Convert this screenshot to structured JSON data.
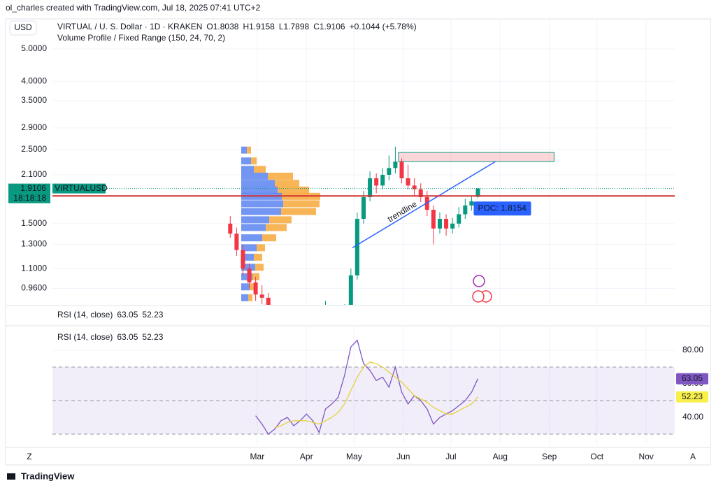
{
  "header": {
    "attribution": "ol_charles created with TradingView.com, Jul 18, 2025 07:41 UTC+2"
  },
  "footer": {
    "brand": "TradingView",
    "left_button": "Z",
    "right_button": "A"
  },
  "chart_data": [
    {
      "type": "candlestick",
      "currency": "USD",
      "symbol": "VIRTUAL / U. S. Dollar · 1D · KRAKEN",
      "ohlc_labels": [
        "O",
        "H",
        "L",
        "C"
      ],
      "change": "+0.1044 (+5.78%)",
      "indicator": "Volume Profile / Fixed Range (150, 24, 70, 2)",
      "up_color": "#089981",
      "down_color": "#f23645",
      "log_scale": true,
      "grid": true,
      "x": [
        -17,
        -13,
        -9,
        -5,
        -1,
        3,
        7,
        11,
        15,
        19,
        23,
        27,
        31,
        35,
        39,
        43,
        47,
        51,
        55,
        59,
        63,
        67,
        71,
        75,
        79,
        83,
        87,
        91,
        95,
        99,
        103,
        107,
        111,
        115,
        119,
        123,
        127,
        131,
        135,
        139
      ],
      "open": [
        1.5,
        1.4,
        1.25,
        1.1,
        1.0,
        0.92,
        0.9,
        0.82,
        0.75,
        0.7,
        0.68,
        0.72,
        0.66,
        0.62,
        0.65,
        0.7,
        0.78,
        0.8,
        0.76,
        0.82,
        1.05,
        1.55,
        1.8,
        2.05,
        1.95,
        2.1,
        2.2,
        2.3,
        2.05,
        1.95,
        1.9,
        1.8,
        1.65,
        1.45,
        1.55,
        1.45,
        1.5,
        1.6,
        1.7,
        1.8038
      ],
      "high": [
        1.58,
        1.46,
        1.3,
        1.14,
        1.04,
        0.98,
        0.93,
        0.85,
        0.78,
        0.73,
        0.75,
        0.74,
        0.68,
        0.68,
        0.73,
        0.88,
        0.83,
        0.82,
        0.86,
        1.1,
        1.62,
        1.88,
        2.15,
        2.12,
        2.2,
        2.4,
        2.55,
        2.35,
        2.25,
        2.05,
        1.98,
        1.88,
        1.7,
        1.62,
        1.6,
        1.56,
        1.68,
        1.78,
        1.82,
        1.9158
      ],
      "low": [
        1.36,
        1.2,
        1.05,
        0.96,
        0.88,
        0.86,
        0.79,
        0.72,
        0.67,
        0.65,
        0.66,
        0.63,
        0.59,
        0.6,
        0.63,
        0.68,
        0.75,
        0.73,
        0.74,
        0.8,
        1.02,
        1.5,
        1.75,
        1.85,
        1.9,
        2.02,
        2.12,
        1.98,
        1.9,
        1.82,
        1.74,
        1.58,
        1.3,
        1.4,
        1.38,
        1.4,
        1.46,
        1.55,
        1.64,
        1.7898
      ],
      "close": [
        1.4,
        1.25,
        1.1,
        1.0,
        0.92,
        0.9,
        0.82,
        0.75,
        0.7,
        0.68,
        0.72,
        0.66,
        0.62,
        0.65,
        0.7,
        0.78,
        0.8,
        0.76,
        0.82,
        1.05,
        1.55,
        1.8,
        2.05,
        1.95,
        2.1,
        2.2,
        2.3,
        2.05,
        1.95,
        1.9,
        1.8,
        1.65,
        1.45,
        1.55,
        1.45,
        1.5,
        1.6,
        1.7,
        1.75,
        1.9106
      ],
      "xlim": [
        -129,
        263
      ],
      "xticks": [
        {
          "value": 0,
          "label": "Mar"
        },
        {
          "value": 31,
          "label": "Apr"
        },
        {
          "value": 61,
          "label": "May"
        },
        {
          "value": 92,
          "label": "Jun"
        },
        {
          "value": 122,
          "label": "Jul"
        },
        {
          "value": 153,
          "label": "Aug"
        },
        {
          "value": 184,
          "label": "Sep"
        },
        {
          "value": 214,
          "label": "Oct"
        },
        {
          "value": 245,
          "label": "Nov"
        }
      ],
      "ylim": [
        0.857,
        6.15
      ],
      "yticks": [
        {
          "value": 0.96,
          "label": "0.9600"
        },
        {
          "value": 1.1,
          "label": "1.1000"
        },
        {
          "value": 1.3,
          "label": "1.3000"
        },
        {
          "value": 1.5,
          "label": "1.5000"
        },
        {
          "value": 2.1,
          "label": "2.1000"
        },
        {
          "value": 2.5,
          "label": "2.5000"
        },
        {
          "value": 2.9,
          "label": "2.9000"
        },
        {
          "value": 3.5,
          "label": "3.5000"
        },
        {
          "value": 4,
          "label": "4.0000"
        },
        {
          "value": 5,
          "label": "5.0000"
        }
      ],
      "price_tag": {
        "symbol": "VIRTUALUSD",
        "countdown": "18:18:18",
        "color": "#089981"
      },
      "poc": {
        "value": 1.8154,
        "label": "POC: 1.8154",
        "color": "#d32f2f",
        "tag_color": "#2962ff"
      },
      "trendline": {
        "label": "trendline",
        "x": [
          60,
          150
        ],
        "y": [
          1.27,
          2.3
        ],
        "color": "#2962ff"
      },
      "zone": {
        "x": [
          89,
          187
        ],
        "y": [
          2.3,
          2.45
        ]
      },
      "volume_profile": {
        "up_color": "#5b84f0",
        "down_color": "#f7a83a",
        "price": [
          2.49,
          2.31,
          2.18,
          2.08,
          1.98,
          1.89,
          1.81,
          1.72,
          1.63,
          1.54,
          1.46,
          1.36,
          1.27,
          1.19,
          1.11,
          1.04,
          0.97,
          0.9
        ],
        "up": [
          8,
          14,
          18,
          38,
          48,
          52,
          58,
          60,
          57,
          40,
          35,
          30,
          22,
          18,
          20,
          16,
          12,
          10
        ],
        "down": [
          6,
          8,
          17,
          36,
          35,
          45,
          55,
          52,
          50,
          32,
          30,
          20,
          12,
          12,
          12,
          10,
          8,
          6
        ]
      }
    },
    {
      "type": "line",
      "title": "RSI (14, close)",
      "x": [
        -1,
        3,
        7,
        11,
        15,
        19,
        23,
        27,
        31,
        35,
        39,
        43,
        47,
        51,
        55,
        59,
        63,
        67,
        71,
        75,
        79,
        83,
        87,
        91,
        95,
        99,
        103,
        107,
        111,
        115,
        119,
        123,
        127,
        131,
        135,
        139
      ],
      "series": [
        {
          "color": "#7e57c2",
          "values": [
            41,
            36,
            30,
            33,
            38,
            40,
            35,
            38,
            42,
            38,
            31,
            45,
            48,
            52,
            65,
            82,
            86,
            72,
            68,
            62,
            64,
            58,
            70,
            55,
            48,
            53,
            50,
            45,
            36,
            40,
            42,
            44,
            47,
            50,
            55,
            63.05
          ]
        },
        {
          "color": "#e6d23a",
          "tag_color": "#f7f04a",
          "values": [
            null,
            null,
            null,
            34,
            35,
            37,
            38,
            38,
            38,
            37,
            36,
            38,
            40,
            43,
            48,
            56,
            64,
            70,
            73,
            72,
            70,
            67,
            64,
            61,
            57,
            53,
            51,
            49,
            46,
            44,
            42,
            42,
            44,
            46,
            48,
            52.23
          ]
        }
      ],
      "bands": [
        30,
        50,
        70
      ],
      "band_color": "#7e57c2",
      "xlim": [
        -129,
        263
      ],
      "ylim": [
        23.75,
        94.6
      ],
      "yticks": [
        {
          "value": 40,
          "label": "40.00"
        },
        {
          "value": 60,
          "label": "60.00"
        },
        {
          "value": 80,
          "label": "80.00"
        }
      ]
    }
  ]
}
